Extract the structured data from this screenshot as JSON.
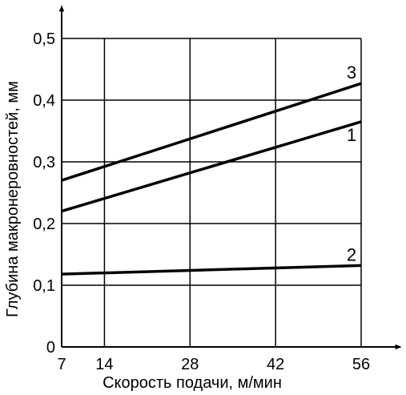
{
  "chart_data": {
    "type": "line",
    "xlabel": "Скорость подачи, м/мин",
    "ylabel": "Глубина макронеровностей, мм",
    "xlim": [
      7,
      56
    ],
    "ylim": [
      0,
      0.5
    ],
    "x_ticks": [
      7,
      14,
      28,
      42,
      56
    ],
    "x_tick_labels": [
      "7",
      "14",
      "28",
      "42",
      "56"
    ],
    "y_ticks": [
      0,
      0.1,
      0.2,
      0.3,
      0.4,
      0.5
    ],
    "y_tick_labels": [
      "0",
      "0,1",
      "0,2",
      "0,3",
      "0,4",
      "0,5"
    ],
    "grid": true,
    "series": [
      {
        "name": "1",
        "x": [
          7,
          56
        ],
        "y": [
          0.22,
          0.365
        ]
      },
      {
        "name": "2",
        "x": [
          7,
          56
        ],
        "y": [
          0.118,
          0.132
        ]
      },
      {
        "name": "3",
        "x": [
          7,
          56
        ],
        "y": [
          0.27,
          0.427
        ]
      }
    ],
    "colors": {
      "line": "#000000",
      "grid": "#000000"
    }
  }
}
